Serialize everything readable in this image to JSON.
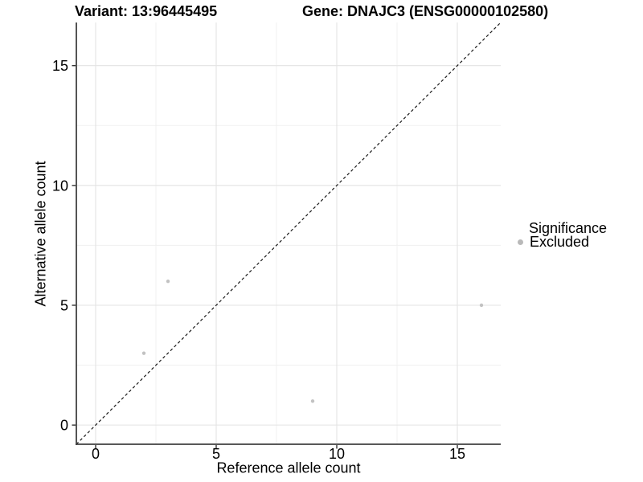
{
  "chart_data": {
    "type": "scatter",
    "titles": {
      "left": "Variant: 13:96445495",
      "right": "Gene: DNAJC3 (ENSG00000102580)"
    },
    "xlabel": "Reference allele count",
    "ylabel": "Alternative allele count",
    "xlim": [
      0,
      16
    ],
    "ylim": [
      0,
      16
    ],
    "x_ticks": [
      0,
      5,
      10,
      15
    ],
    "y_ticks": [
      0,
      5,
      10,
      15
    ],
    "x_minor_ticks": [
      2.5,
      7.5,
      12.5
    ],
    "y_minor_ticks": [
      2.5,
      7.5,
      12.5
    ],
    "grid": "major+minor",
    "series": [
      {
        "name": "Excluded",
        "color": "#c2c2c2",
        "points": [
          [
            2,
            3
          ],
          [
            3,
            6
          ],
          [
            9,
            1
          ],
          [
            16,
            5
          ]
        ]
      }
    ],
    "reference_line": {
      "kind": "y=x",
      "style": "dashed",
      "color": "#1a1a1a"
    },
    "legend": {
      "title": "Significance",
      "position": "right",
      "items": [
        {
          "label": "Excluded",
          "color": "#b9b9b9"
        }
      ]
    }
  },
  "colors": {
    "background": "#ffffff",
    "grid_major": "#e3e3e3",
    "grid_minor": "#f0f0f0",
    "axis_line": "#404040",
    "tick_mark": "#333333",
    "tick_text": "#000000"
  }
}
